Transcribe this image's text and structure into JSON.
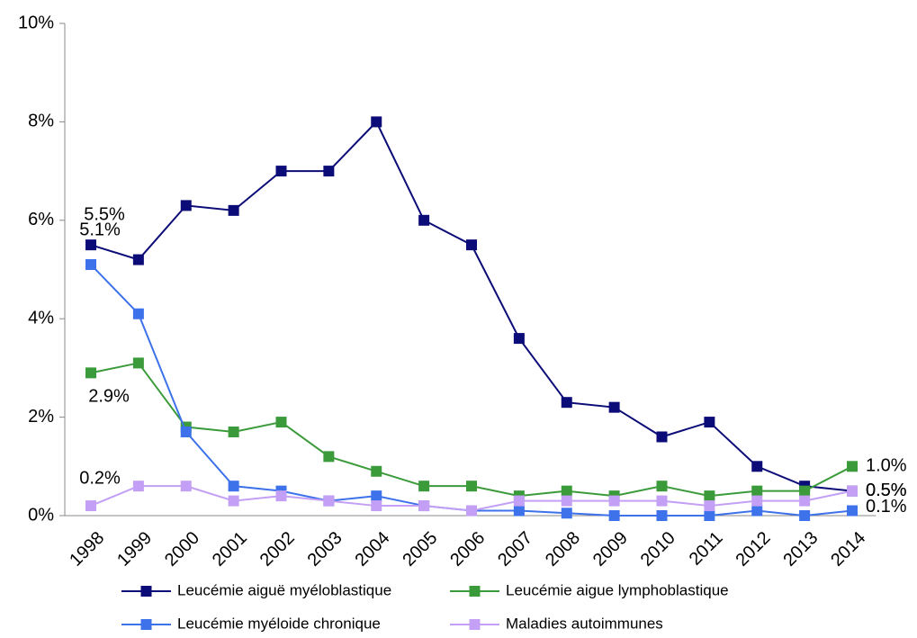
{
  "chart_data": {
    "type": "line",
    "categories": [
      "1998",
      "1999",
      "2000",
      "2001",
      "2002",
      "2003",
      "2004",
      "2005",
      "2006",
      "2007",
      "2008",
      "2009",
      "2010",
      "2011",
      "2012",
      "2013",
      "2014"
    ],
    "ylim": [
      0,
      10
    ],
    "yticks": [
      {
        "value": 0,
        "label": "0%"
      },
      {
        "value": 2,
        "label": "2%"
      },
      {
        "value": 4,
        "label": "4%"
      },
      {
        "value": 6,
        "label": "6%"
      },
      {
        "value": 8,
        "label": "8%"
      },
      {
        "value": 10,
        "label": "10%"
      }
    ],
    "grid": false,
    "legend": "bottom",
    "series": [
      {
        "name": "Leucémie aiguë myéloblastique",
        "color": "#0c0c78",
        "values": [
          5.5,
          5.2,
          6.3,
          6.2,
          7.0,
          7.0,
          8.0,
          6.0,
          5.5,
          3.6,
          2.3,
          2.2,
          1.6,
          1.9,
          1.0,
          0.6,
          0.5
        ],
        "value_labels": [
          "5.5%",
          null,
          null,
          null,
          null,
          null,
          null,
          null,
          null,
          null,
          null,
          null,
          null,
          null,
          null,
          null,
          "0.5%"
        ]
      },
      {
        "name": "Leucémie aigue lymphoblastique",
        "color": "#3b9b3b",
        "values": [
          2.9,
          3.1,
          1.8,
          1.7,
          1.9,
          1.2,
          0.9,
          0.6,
          0.6,
          0.4,
          0.5,
          0.4,
          0.6,
          0.4,
          0.5,
          0.5,
          1.0
        ],
        "value_labels": [
          "2.9%",
          null,
          null,
          null,
          null,
          null,
          null,
          null,
          null,
          null,
          null,
          null,
          null,
          null,
          null,
          null,
          "1.0%"
        ]
      },
      {
        "name": "Leucémie myéloide chronique",
        "color": "#3d72eb",
        "values": [
          5.1,
          4.1,
          1.7,
          0.6,
          0.5,
          0.3,
          0.4,
          0.2,
          0.1,
          0.1,
          0.05,
          0.0,
          0.0,
          0.0,
          0.1,
          0.0,
          0.1
        ],
        "value_labels": [
          "5.1%",
          null,
          null,
          null,
          null,
          null,
          null,
          null,
          null,
          null,
          null,
          null,
          null,
          null,
          null,
          null,
          "0.1%"
        ]
      },
      {
        "name": "Maladies autoimmunes",
        "color": "#c3a0f5",
        "values": [
          0.2,
          0.6,
          0.6,
          0.3,
          0.4,
          0.3,
          0.2,
          0.2,
          0.1,
          0.3,
          0.3,
          0.3,
          0.3,
          0.2,
          0.3,
          0.3,
          0.5
        ],
        "value_labels": [
          "0.2%",
          null,
          null,
          null,
          null,
          null,
          null,
          null,
          null,
          null,
          null,
          null,
          null,
          null,
          null,
          null,
          "0.5%"
        ]
      }
    ]
  }
}
